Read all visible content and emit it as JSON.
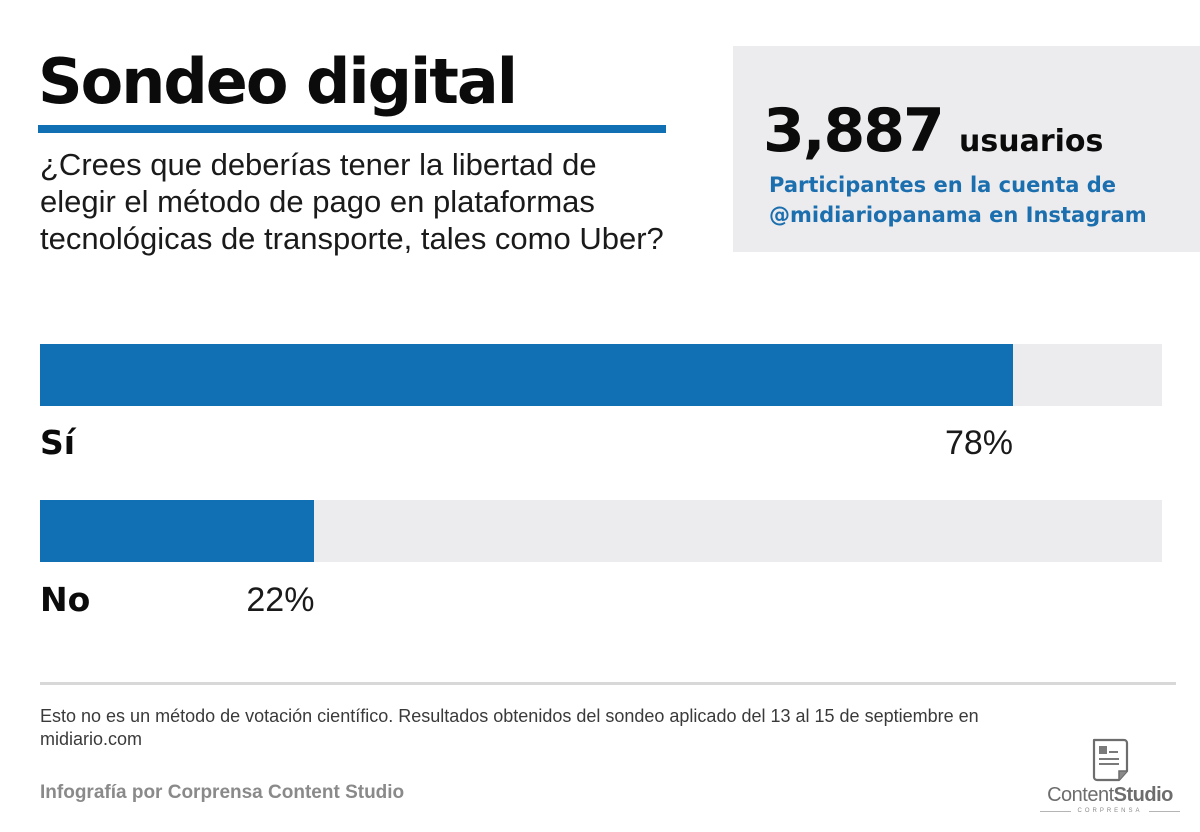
{
  "header": {
    "title": "Sondeo digital",
    "question": "¿Crees que deberías tener la libertad de elegir el método de pago en plataformas tecnológicas de transporte, tales como Uber?"
  },
  "stat_box": {
    "count": "3,887",
    "unit": "usuarios",
    "description": "Participantes en la cuenta de @midiariopanama en Instagram"
  },
  "results": [
    {
      "label": "Sí",
      "value": 78,
      "value_label": "78%"
    },
    {
      "label": "No",
      "value": 22,
      "value_label": "22%"
    }
  ],
  "colors": {
    "accent": "#1170b3",
    "track": "#ececee",
    "stat_text": "#1c6fae"
  },
  "footer": {
    "disclaimer": "Esto no es un método de votación científico. Resultados obtenidos del sondeo aplicado del 13 al 15 de septiembre en midiario.com",
    "credit": "Infografía por Corprensa Content Studio",
    "logo": {
      "icon": "document-icon",
      "text_light": "Content",
      "text_bold": "Studio",
      "subtitle": "CORPRENSA"
    }
  },
  "chart_data": {
    "type": "bar",
    "orientation": "horizontal",
    "title": "Sondeo digital",
    "subtitle": "¿Crees que deberías tener la libertad de elegir el método de pago en plataformas tecnológicas de transporte, tales como Uber?",
    "categories": [
      "Sí",
      "No"
    ],
    "values": [
      78,
      22
    ],
    "value_labels": [
      "78%",
      "22%"
    ],
    "unit": "%",
    "xlim": [
      0,
      100
    ],
    "xlabel": "",
    "ylabel": "",
    "grid": false,
    "legend": null,
    "annotations": [
      "3,887 usuarios",
      "Participantes en la cuenta de @midiariopanama en Instagram"
    ]
  }
}
